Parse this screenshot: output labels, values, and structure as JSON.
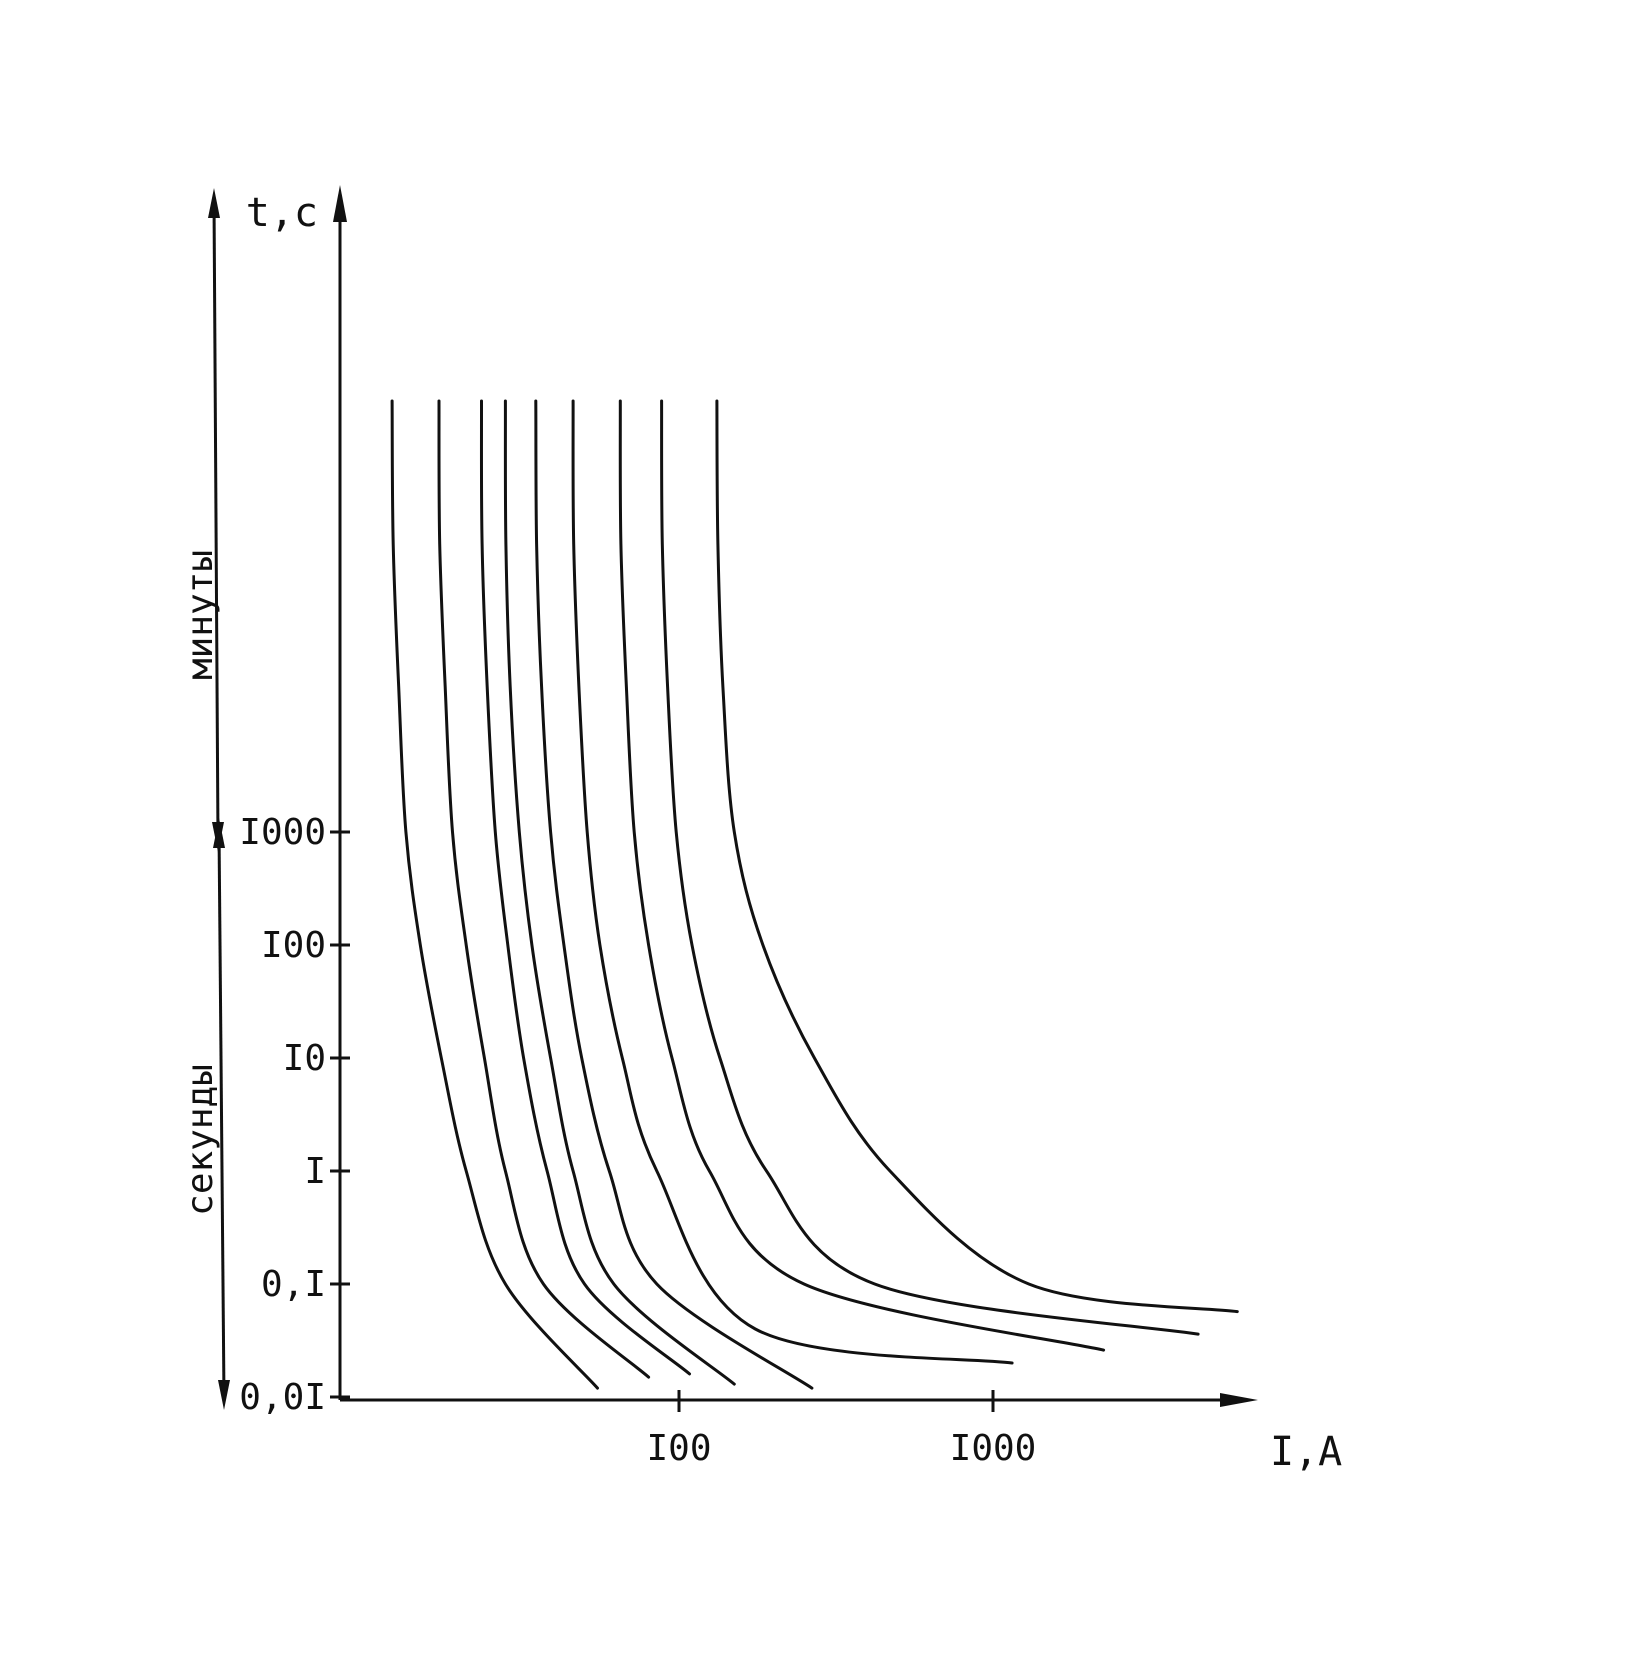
{
  "chart_data": {
    "type": "line",
    "x_scale": "log",
    "y_scale": "log",
    "xlabel": "I,A",
    "ylabel": "t,c",
    "x_ticks": [
      {
        "value": 100,
        "label": "I00"
      },
      {
        "value": 1000,
        "label": "I000"
      }
    ],
    "y_ticks": [
      {
        "value": 0.01,
        "label": "0,0I"
      },
      {
        "value": 0.1,
        "label": "0,I"
      },
      {
        "value": 1,
        "label": "I"
      },
      {
        "value": 10,
        "label": "I0"
      },
      {
        "value": 100,
        "label": "I00"
      },
      {
        "value": 1000,
        "label": "I000"
      }
    ],
    "y_ranges": [
      {
        "label": "минуты",
        "from": 1000,
        "to": "top"
      },
      {
        "label": "секунды",
        "from": 0.01,
        "to": 1000
      }
    ],
    "grid": false,
    "legend": "none",
    "series": [
      {
        "points": [
          [
            12.2,
            1000000.0
          ],
          [
            12.3,
            100000.0
          ],
          [
            12.8,
            10000.0
          ],
          [
            13.5,
            1000.0
          ],
          [
            15,
            100
          ],
          [
            17.5,
            10
          ],
          [
            21,
            1
          ],
          [
            28,
            0.1
          ],
          [
            55,
            0.012
          ]
        ]
      },
      {
        "points": [
          [
            17.2,
            1000000.0
          ],
          [
            17.3,
            100000.0
          ],
          [
            18,
            10000.0
          ],
          [
            19,
            1000.0
          ],
          [
            21,
            100
          ],
          [
            24,
            10
          ],
          [
            28,
            1
          ],
          [
            37,
            0.1
          ],
          [
            80,
            0.015
          ]
        ]
      },
      {
        "points": [
          [
            23.5,
            1000000.0
          ],
          [
            23.6,
            100000.0
          ],
          [
            24.5,
            10000.0
          ],
          [
            26,
            1000.0
          ],
          [
            28.5,
            100
          ],
          [
            32,
            10
          ],
          [
            38,
            1
          ],
          [
            50,
            0.1
          ],
          [
            108,
            0.016
          ]
        ]
      },
      {
        "points": [
          [
            28,
            1000000.0
          ],
          [
            28.1,
            100000.0
          ],
          [
            29,
            10000.0
          ],
          [
            31,
            1000.0
          ],
          [
            34,
            100
          ],
          [
            39,
            10
          ],
          [
            46,
            1
          ],
          [
            62,
            0.1
          ],
          [
            150,
            0.013
          ]
        ]
      },
      {
        "points": [
          [
            35,
            1000000.0
          ],
          [
            35.2,
            100000.0
          ],
          [
            36.5,
            10000.0
          ],
          [
            39,
            1000.0
          ],
          [
            43,
            100
          ],
          [
            49,
            10
          ],
          [
            60,
            1
          ],
          [
            85,
            0.1
          ],
          [
            265,
            0.012
          ]
        ]
      },
      {
        "points": [
          [
            46,
            1000000.0
          ],
          [
            46.2,
            100000.0
          ],
          [
            48,
            10000.0
          ],
          [
            51,
            1000.0
          ],
          [
            56,
            100
          ],
          [
            66,
            10
          ],
          [
            85,
            1
          ],
          [
            175,
            0.04
          ],
          [
            1150,
            0.02
          ]
        ]
      },
      {
        "points": [
          [
            65,
            1000000.0
          ],
          [
            65.3,
            100000.0
          ],
          [
            68,
            10000.0
          ],
          [
            72,
            1000.0
          ],
          [
            80,
            100
          ],
          [
            95,
            10
          ],
          [
            125,
            1
          ],
          [
            250,
            0.1
          ],
          [
            2250,
            0.026
          ]
        ]
      },
      {
        "points": [
          [
            88,
            1000000.0
          ],
          [
            88.5,
            100000.0
          ],
          [
            92,
            10000.0
          ],
          [
            98,
            1000.0
          ],
          [
            110,
            100
          ],
          [
            135,
            10
          ],
          [
            190,
            1
          ],
          [
            420,
            0.1
          ],
          [
            4500,
            0.036
          ]
        ]
      },
      {
        "points": [
          [
            132,
            1000000.0
          ],
          [
            133,
            100000.0
          ],
          [
            138,
            10000.0
          ],
          [
            150,
            1000.0
          ],
          [
            185,
            100
          ],
          [
            270,
            10
          ],
          [
            470,
            1
          ],
          [
            1300,
            0.1
          ],
          [
            6000,
            0.057
          ]
        ]
      }
    ]
  }
}
